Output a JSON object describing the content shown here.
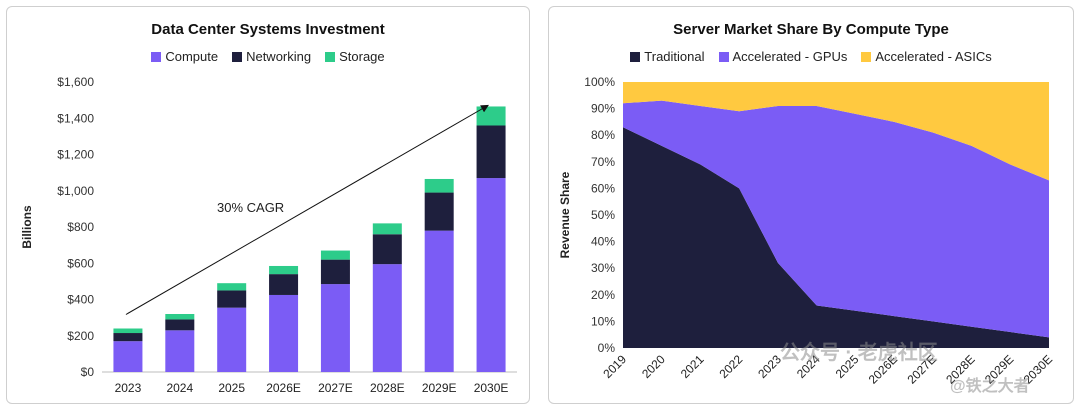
{
  "charts": {
    "left": {
      "title": "Data Center Systems Investment",
      "ylabel": "Billions",
      "annotation": "30% CAGR",
      "legend": [
        {
          "name": "Compute",
          "color": "#7b5cf5"
        },
        {
          "name": "Networking",
          "color": "#1e1f3d"
        },
        {
          "name": "Storage",
          "color": "#2dcc8a"
        }
      ]
    },
    "right": {
      "title": "Server Market Share By Compute Type",
      "ylabel": "Revenue Share",
      "legend": [
        {
          "name": "Traditional",
          "color": "#1e1f3d"
        },
        {
          "name": "Accelerated - GPUs",
          "color": "#7b5cf5"
        },
        {
          "name": "Accelerated - ASICs",
          "color": "#ffc940"
        }
      ]
    }
  },
  "watermark": {
    "line1": "公众号 · 老虎社区",
    "line2": "@铁之大者"
  },
  "chart_data": [
    {
      "type": "bar",
      "stacked": true,
      "title": "Data Center Systems Investment",
      "xlabel": "",
      "ylabel": "Billions",
      "categories": [
        "2023",
        "2024",
        "2025",
        "2026E",
        "2027E",
        "2028E",
        "2029E",
        "2030E"
      ],
      "series": [
        {
          "name": "Compute",
          "values": [
            170,
            230,
            355,
            425,
            485,
            595,
            780,
            1070
          ],
          "color": "#7b5cf5"
        },
        {
          "name": "Networking",
          "values": [
            45,
            60,
            95,
            115,
            135,
            165,
            210,
            290
          ],
          "color": "#1e1f3d"
        },
        {
          "name": "Storage",
          "values": [
            25,
            30,
            40,
            45,
            50,
            60,
            75,
            105
          ],
          "color": "#2dcc8a"
        }
      ],
      "ylim": [
        0,
        1600
      ],
      "yticks": [
        0,
        200,
        400,
        600,
        800,
        1000,
        1200,
        1400,
        1600
      ],
      "ytick_labels": [
        "$0",
        "$200",
        "$400",
        "$600",
        "$800",
        "$1,000",
        "$1,200",
        "$1,400",
        "$1,600"
      ],
      "grid": false,
      "legend": "top",
      "annotation": {
        "text": "30% CAGR",
        "arrow_from": [
          "2023",
          240
        ],
        "arrow_to": [
          "2030E",
          1460
        ]
      }
    },
    {
      "type": "area",
      "stacked": true,
      "title": "Server Market Share By Compute Type",
      "xlabel": "",
      "ylabel": "Revenue Share",
      "x": [
        "2019",
        "2020",
        "2021",
        "2022",
        "2023",
        "2024",
        "2025",
        "2026E",
        "2027E",
        "2028E",
        "2029E",
        "2030E"
      ],
      "series": [
        {
          "name": "Traditional",
          "values": [
            83,
            76,
            69,
            60,
            32,
            16,
            14,
            12,
            10,
            8,
            6,
            4
          ],
          "color": "#1e1f3d"
        },
        {
          "name": "Accelerated - GPUs",
          "values": [
            9,
            17,
            22,
            29,
            59,
            75,
            74,
            73,
            71,
            68,
            63,
            59
          ],
          "color": "#7b5cf5"
        },
        {
          "name": "Accelerated - ASICs",
          "values": [
            8,
            7,
            9,
            11,
            9,
            9,
            12,
            15,
            19,
            24,
            31,
            37
          ],
          "color": "#ffc940"
        }
      ],
      "ylim": [
        0,
        100
      ],
      "yticks": [
        0,
        10,
        20,
        30,
        40,
        50,
        60,
        70,
        80,
        90,
        100
      ],
      "ytick_labels": [
        "0%",
        "10%",
        "20%",
        "30%",
        "40%",
        "50%",
        "60%",
        "70%",
        "80%",
        "90%",
        "100%"
      ],
      "grid": false,
      "legend": "top"
    }
  ]
}
